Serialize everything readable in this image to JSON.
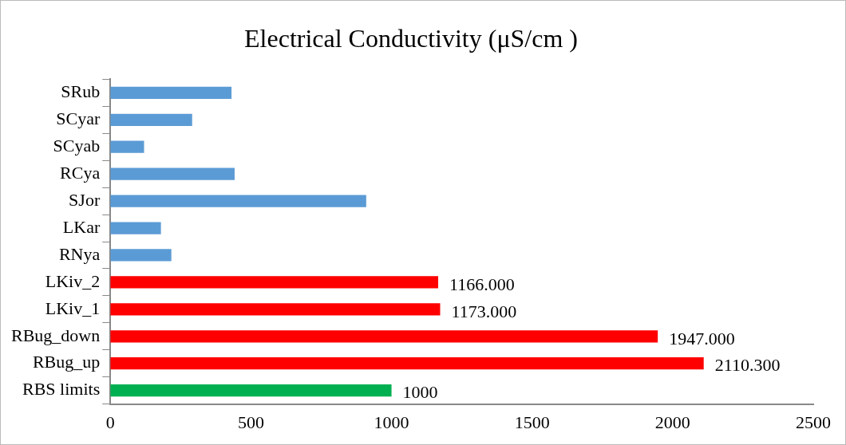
{
  "chart_data": {
    "type": "bar",
    "orientation": "horizontal",
    "title": "Electrical Conductivity (μS/cm )",
    "categories": [
      "SRub",
      "SCyar",
      "SCyab",
      "RCya",
      "SJor",
      "LKar",
      "RNya",
      "LKiv_2",
      "LKiv_1",
      "RBug_down",
      "RBug_up",
      "RBS limits"
    ],
    "values": [
      431,
      291,
      120,
      442,
      910,
      180,
      217,
      1166,
      1173,
      1947,
      2110.3,
      1000
    ],
    "colors": [
      "#5b9bd5",
      "#5b9bd5",
      "#5b9bd5",
      "#5b9bd5",
      "#5b9bd5",
      "#5b9bd5",
      "#5b9bd5",
      "#ff0000",
      "#ff0000",
      "#ff0000",
      "#ff0000",
      "#00b050"
    ],
    "value_labels": [
      null,
      null,
      null,
      null,
      null,
      null,
      null,
      "1166.000",
      "1173.000",
      "1947.000",
      "2110.300",
      "1000"
    ],
    "xlim": [
      0,
      2500
    ],
    "xticks": [
      0,
      500,
      1000,
      1500,
      2000,
      2500
    ],
    "grid": false,
    "legend": false
  }
}
